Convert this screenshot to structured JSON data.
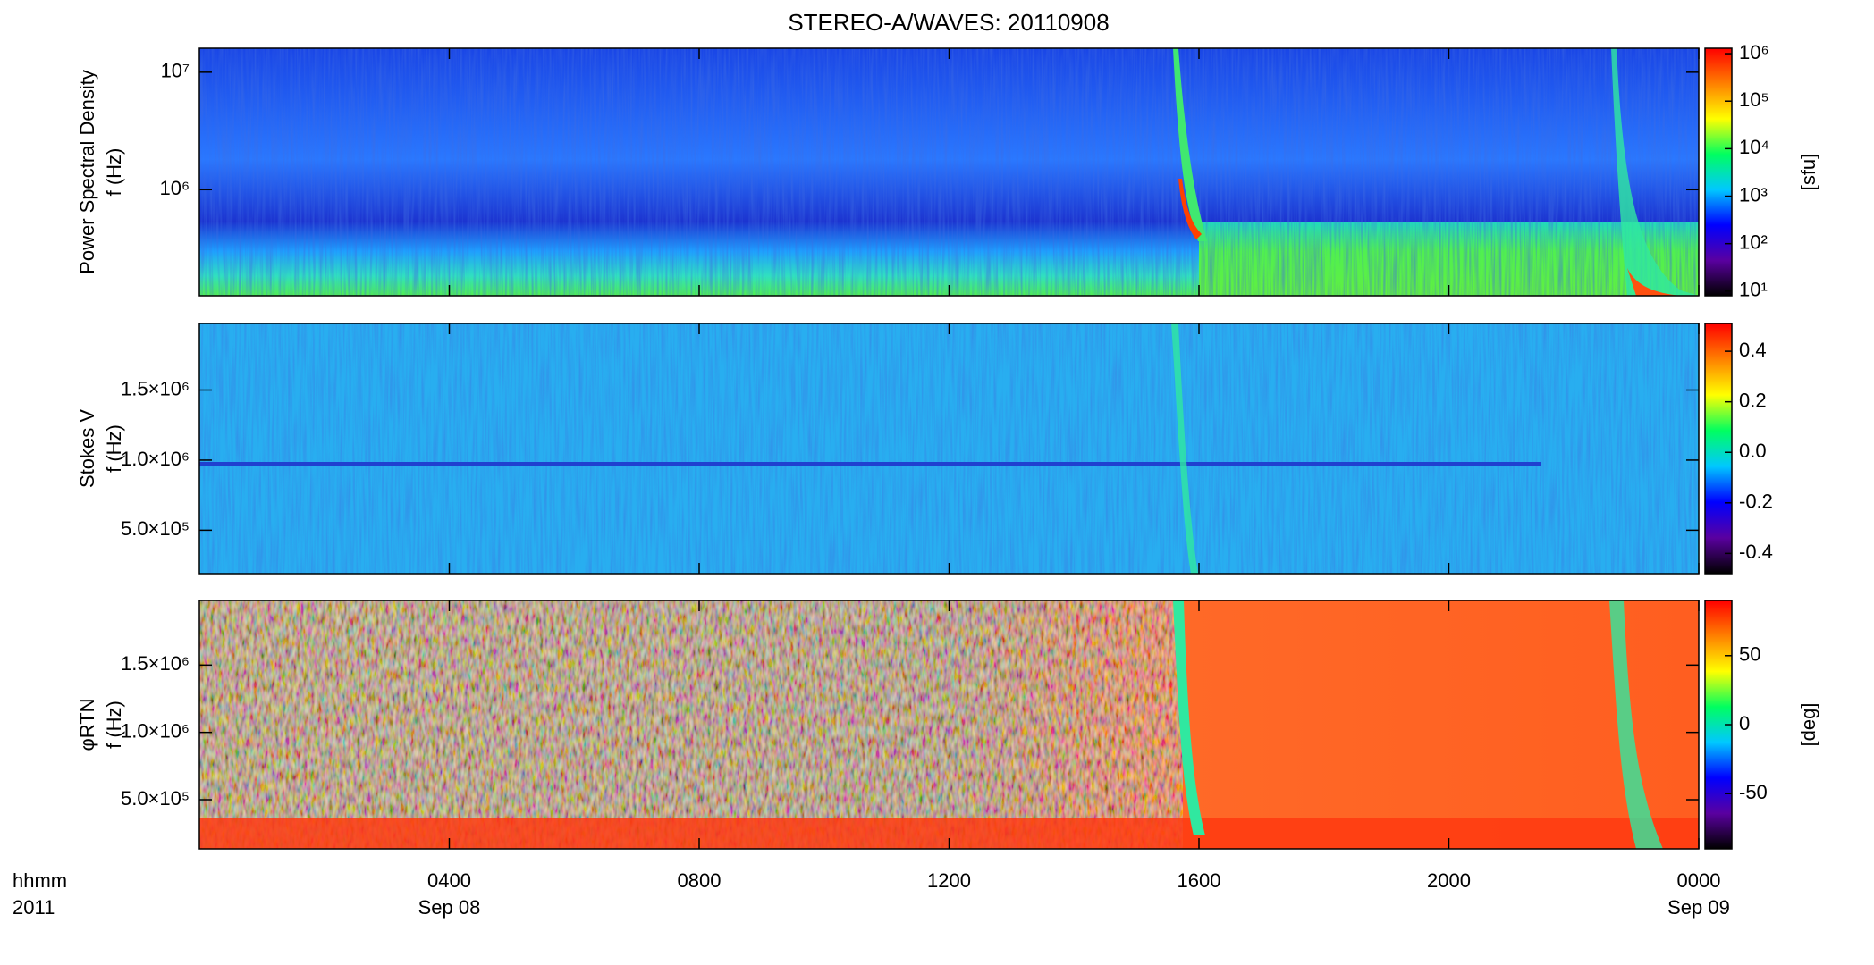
{
  "chart_data": [
    {
      "type": "heatmap",
      "title": "STEREO-A/WAVES: 20110908",
      "ylabel": [
        "Power Spectral Density",
        "f (Hz)"
      ],
      "ylog": true,
      "ylim": [
        125000,
        16000000
      ],
      "yticks": [
        {
          "value": 1000000,
          "label": "10⁶"
        },
        {
          "value": 10000000,
          "label": "10⁷"
        }
      ],
      "colormap": [
        "#000000",
        "#5a00a0",
        "#0000ff",
        "#00c8ff",
        "#00ff60",
        "#ffff00",
        "#ff8000",
        "#ff0000"
      ],
      "colorbar": {
        "log": true,
        "lim": [
          8,
          1300000
        ],
        "label": "[sfu]",
        "ticks": [
          {
            "value": 10,
            "label": "10¹"
          },
          {
            "value": 100,
            "label": "10²"
          },
          {
            "value": 1000,
            "label": "10³"
          },
          {
            "value": 10000,
            "label": "10⁴"
          },
          {
            "value": 100000,
            "label": "10⁵"
          },
          {
            "value": 1000000,
            "label": "10⁶"
          }
        ]
      }
    },
    {
      "type": "heatmap",
      "ylabel": [
        "Stokes V",
        "f (Hz)"
      ],
      "ylim": [
        190000,
        1975000
      ],
      "yticks": [
        {
          "value": 500000,
          "label": "5.0×10⁵"
        },
        {
          "value": 1000000,
          "label": "1.0×10⁶"
        },
        {
          "value": 1500000,
          "label": "1.5×10⁶"
        }
      ],
      "colormap": [
        "#000000",
        "#5a00a0",
        "#0000ff",
        "#00c8ff",
        "#00ff60",
        "#ffff00",
        "#ff8000",
        "#ff0000"
      ],
      "colorbar": {
        "lim": [
          -0.48,
          0.51
        ],
        "ticks": [
          -0.4,
          -0.2,
          {
            "value": 0,
            "label": "0.0"
          },
          0.2,
          0.4
        ]
      }
    },
    {
      "type": "heatmap",
      "ylabel": [
        "φRTN",
        "f (Hz)"
      ],
      "ylim": [
        135000,
        1980000
      ],
      "yticks": [
        {
          "value": 500000,
          "label": "5.0×10⁵"
        },
        {
          "value": 1000000,
          "label": "1.0×10⁶"
        },
        {
          "value": 1500000,
          "label": "1.5×10⁶"
        }
      ],
      "colormap": [
        "#000000",
        "#5a00a0",
        "#0000ff",
        "#00c8ff",
        "#00ff60",
        "#ffff00",
        "#ff8000",
        "#ff0000"
      ],
      "colorbar": {
        "lim": [
          -90,
          90
        ],
        "label": "[deg]",
        "ticks": [
          -50,
          0,
          50
        ]
      },
      "xlim": [
        0,
        24
      ],
      "xticks": [
        {
          "value": 4,
          "label": "0400"
        },
        {
          "value": 8,
          "label": "0800"
        },
        {
          "value": 12,
          "label": "1200"
        },
        {
          "value": 16,
          "label": "1600"
        },
        {
          "value": 20,
          "label": "2000"
        },
        {
          "value": 24,
          "label": "0000"
        }
      ],
      "xtick_dates": [
        {
          "value": 4,
          "label": "Sep 08"
        },
        {
          "value": 24,
          "label": "Sep 09"
        }
      ],
      "xaxis_label": [
        "hhmm",
        "2011"
      ]
    }
  ]
}
